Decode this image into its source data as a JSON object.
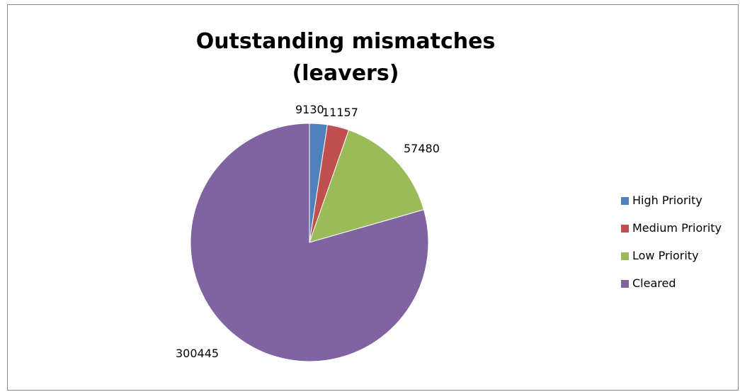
{
  "chart_data": {
    "type": "pie",
    "title": "Outstanding mismatches (leavers)",
    "title_lines": [
      "Outstanding mismatches",
      "(leavers)"
    ],
    "categories": [
      "High Priority",
      "Medium Priority",
      "Low Priority",
      "Cleared"
    ],
    "values": [
      9130,
      11157,
      57480,
      300445
    ],
    "value_labels": [
      "9130",
      "11157",
      "57480",
      "300445"
    ],
    "colors": [
      "#4f81bd",
      "#c0504d",
      "#9bbb59",
      "#8064a2"
    ],
    "legend_position": "right",
    "grid": false
  }
}
